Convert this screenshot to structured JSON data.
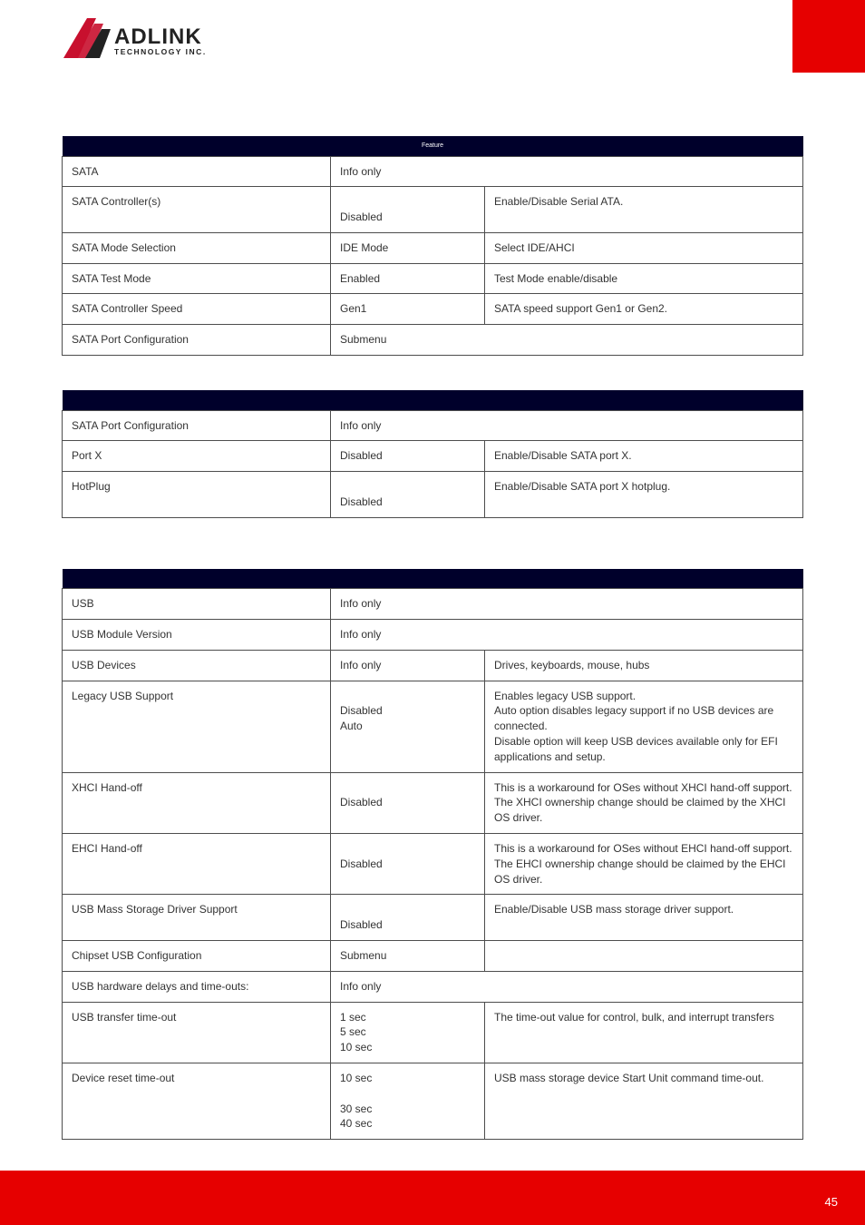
{
  "colors": {
    "header_bg": "#00002b",
    "header_text": "#ffffff",
    "cell_border": "#4d4d4d",
    "accent": "#e60000",
    "text": "#333333",
    "page_bg": "#ffffff"
  },
  "logo": {
    "brand": "ADLINK",
    "subtitle": "TECHNOLOGY INC.",
    "triangle_color": "#c8102e",
    "text_color": "#222222"
  },
  "table1": {
    "header": "Feature",
    "rows": [
      {
        "feature": "SATA",
        "option": "Info only",
        "span": true
      },
      {
        "feature": "SATA Controller(s)",
        "option": "\nDisabled",
        "desc": "Enable/Disable Serial ATA."
      },
      {
        "feature": "SATA Mode Selection",
        "option": "IDE Mode\n",
        "desc": "Select IDE/AHCI"
      },
      {
        "feature": "SATA Test Mode",
        "option": "Enabled\n",
        "desc": "Test Mode enable/disable"
      },
      {
        "feature": "SATA Controller Speed",
        "option": "Gen1\n",
        "desc": "SATA speed support Gen1 or Gen2."
      },
      {
        "feature": "SATA Port Configuration",
        "option": "Submenu",
        "span": true
      }
    ]
  },
  "table2": {
    "rows": [
      {
        "feature": "SATA Port Configuration",
        "option": "Info only",
        "span": true
      },
      {
        "feature": "Port X",
        "option": "Disabled\n",
        "desc": "Enable/Disable SATA port X."
      },
      {
        "feature": "HotPlug",
        "option": "\nDisabled",
        "desc": "Enable/Disable SATA port X hotplug."
      }
    ]
  },
  "table3": {
    "rows": [
      {
        "feature": "USB",
        "option": "Info only",
        "span": true
      },
      {
        "feature": "USB Module Version",
        "option": "Info only",
        "span": true
      },
      {
        "feature": "USB Devices",
        "option": "Info only",
        "desc": "Drives, keyboards, mouse, hubs"
      },
      {
        "feature": "Legacy USB Support",
        "option": "\nDisabled\nAuto",
        "desc": "Enables legacy USB support.\nAuto option disables legacy support if no USB devices are connected.\nDisable option will keep USB devices available only for EFI applications and setup."
      },
      {
        "feature": "XHCI Hand-off",
        "option": "\nDisabled",
        "desc": "This is a workaround for OSes without XHCI hand-off support. The XHCI ownership change should be claimed by the XHCI OS driver."
      },
      {
        "feature": "EHCI Hand-off",
        "option": "\nDisabled",
        "desc": "This is a workaround for OSes without EHCI hand-off support. The EHCI ownership change should be claimed by the EHCI OS driver."
      },
      {
        "feature": "USB Mass Storage Driver Support",
        "option": "\nDisabled",
        "desc": "Enable/Disable USB mass storage driver support."
      },
      {
        "feature": "Chipset USB Configuration",
        "option": "Submenu",
        "desc": ""
      },
      {
        "feature": "USB hardware delays and time-outs:",
        "option": "Info only",
        "span": true
      },
      {
        "feature": "USB transfer time-out",
        "option": "1 sec\n5 sec\n10 sec\n",
        "desc": "The time-out value for control, bulk, and interrupt transfers"
      },
      {
        "feature": "Device reset time-out",
        "option": "10 sec\n\n30 sec\n40 sec",
        "desc": "USB mass storage device Start Unit command time-out."
      }
    ]
  },
  "page_number": "45"
}
